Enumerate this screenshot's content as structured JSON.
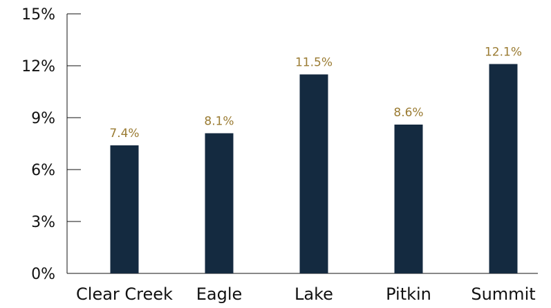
{
  "chart_data": {
    "type": "bar",
    "title": "",
    "xlabel": "",
    "ylabel": "",
    "categories": [
      "Clear Creek",
      "Eagle",
      "Lake",
      "Pitkin",
      "Summit"
    ],
    "values": [
      7.4,
      8.1,
      11.5,
      8.6,
      12.1
    ],
    "data_labels": [
      "7.4%",
      "8.1%",
      "11.5%",
      "8.6%",
      "12.1%"
    ],
    "ylim": [
      0,
      15
    ],
    "yticks": [
      0,
      3,
      6,
      9,
      12,
      15
    ],
    "ytick_labels": [
      "0%",
      "3%",
      "6%",
      "9%",
      "12%",
      "15%"
    ],
    "grid": false,
    "legend": "none",
    "colors": {
      "bar": "#142a40",
      "data_label": "#9a7b32",
      "axis": "#111111"
    }
  }
}
